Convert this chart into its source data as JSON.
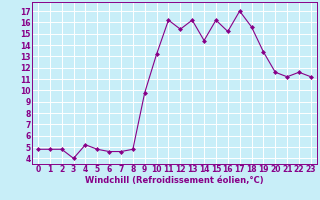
{
  "x": [
    0,
    1,
    2,
    3,
    4,
    5,
    6,
    7,
    8,
    9,
    10,
    11,
    12,
    13,
    14,
    15,
    16,
    17,
    18,
    19,
    20,
    21,
    22,
    23
  ],
  "y": [
    4.8,
    4.8,
    4.8,
    4.0,
    5.2,
    4.8,
    4.6,
    4.6,
    4.8,
    9.8,
    13.2,
    16.2,
    15.4,
    16.2,
    14.4,
    16.2,
    15.2,
    17.0,
    15.6,
    13.4,
    11.6,
    11.2,
    11.6,
    11.2
  ],
  "line_color": "#880088",
  "marker": "D",
  "marker_size": 2.0,
  "bg_color": "#c8eef8",
  "grid_color": "#ffffff",
  "xlabel": "Windchill (Refroidissement éolien,°C)",
  "xlabel_color": "#880088",
  "xlabel_fontsize": 6.0,
  "tick_color": "#880088",
  "tick_fontsize": 5.5,
  "ylim": [
    3.5,
    17.8
  ],
  "xlim": [
    -0.5,
    23.5
  ],
  "yticks": [
    4,
    5,
    6,
    7,
    8,
    9,
    10,
    11,
    12,
    13,
    14,
    15,
    16,
    17
  ],
  "xticks": [
    0,
    1,
    2,
    3,
    4,
    5,
    6,
    7,
    8,
    9,
    10,
    11,
    12,
    13,
    14,
    15,
    16,
    17,
    18,
    19,
    20,
    21,
    22,
    23
  ],
  "spine_color": "#880088",
  "linewidth": 0.8
}
